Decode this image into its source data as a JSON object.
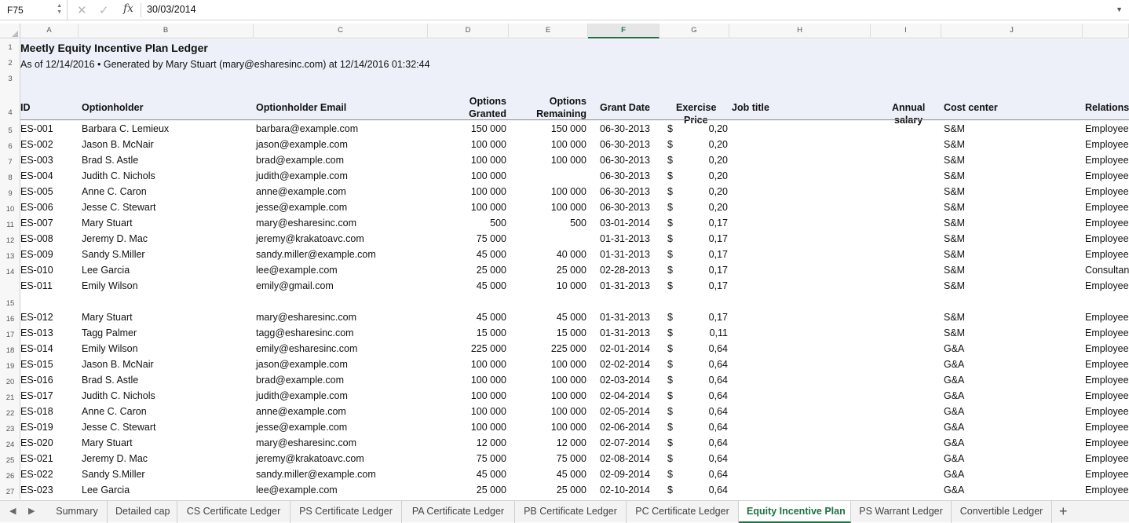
{
  "formula_bar": {
    "cell_ref": "F75",
    "fx": "fx",
    "value": "30/03/2014"
  },
  "columns": [
    "A",
    "B",
    "C",
    "D",
    "E",
    "F",
    "G",
    "H",
    "I",
    "J"
  ],
  "selected_column": "F",
  "sheet": {
    "title": "Meetly Equity Incentive Plan Ledger",
    "subtitle": "As of 12/14/2016 • Generated by Mary Stuart (mary@esharesinc.com) at 12/14/2016 01:32:44",
    "headers": {
      "id": "ID",
      "holder": "Optionholder",
      "email": "Optionholder Email",
      "granted_1": "Options",
      "granted_2": "Granted",
      "remaining_1": "Options",
      "remaining_2": "Remaining",
      "grant_date": "Grant Date",
      "price_1": "Exercise",
      "price_2": "Price",
      "job": "Job title",
      "salary_1": "Annual",
      "salary_2": "salary",
      "cost": "Cost center",
      "relation": "Relationship"
    },
    "rows": [
      {
        "n": "5",
        "id": "ES-001",
        "holder": "Barbara C. Lemieux",
        "email": "barbara@example.com",
        "granted": "150 000",
        "remaining": "150 000",
        "date": "06-30-2013",
        "cur": "$",
        "price": "0,20",
        "cost": "S&M",
        "rel": "Employee"
      },
      {
        "n": "6",
        "id": "ES-002",
        "holder": "Jason B. McNair",
        "email": "jason@example.com",
        "granted": "100 000",
        "remaining": "100 000",
        "date": "06-30-2013",
        "cur": "$",
        "price": "0,20",
        "cost": "S&M",
        "rel": "Employee"
      },
      {
        "n": "7",
        "id": "ES-003",
        "holder": "Brad S. Astle",
        "email": "brad@example.com",
        "granted": "100 000",
        "remaining": "100 000",
        "date": "06-30-2013",
        "cur": "$",
        "price": "0,20",
        "cost": "S&M",
        "rel": "Employee"
      },
      {
        "n": "8",
        "id": "ES-004",
        "holder": "Judith C. Nichols",
        "email": "judith@example.com",
        "granted": "100 000",
        "remaining": "",
        "date": "06-30-2013",
        "cur": "$",
        "price": "0,20",
        "cost": "S&M",
        "rel": "Employee"
      },
      {
        "n": "9",
        "id": "ES-005",
        "holder": "Anne C. Caron",
        "email": "anne@example.com",
        "granted": "100 000",
        "remaining": "100 000",
        "date": "06-30-2013",
        "cur": "$",
        "price": "0,20",
        "cost": "S&M",
        "rel": "Employee"
      },
      {
        "n": "10",
        "id": "ES-006",
        "holder": "Jesse C. Stewart",
        "email": "jesse@example.com",
        "granted": "100 000",
        "remaining": "100 000",
        "date": "06-30-2013",
        "cur": "$",
        "price": "0,20",
        "cost": "S&M",
        "rel": "Employee"
      },
      {
        "n": "11",
        "id": "ES-007",
        "holder": "Mary Stuart",
        "email": "mary@esharesinc.com",
        "granted": "500",
        "remaining": "500",
        "date": "03-01-2014",
        "cur": "$",
        "price": "0,17",
        "cost": "S&M",
        "rel": "Employee"
      },
      {
        "n": "12",
        "id": "ES-008",
        "holder": "Jeremy D. Mac",
        "email": "jeremy@krakatoavc.com",
        "granted": "75 000",
        "remaining": "",
        "date": "01-31-2013",
        "cur": "$",
        "price": "0,17",
        "cost": "S&M",
        "rel": "Employee"
      },
      {
        "n": "13",
        "id": "ES-009",
        "holder": "Sandy S.Miller",
        "email": "sandy.miller@example.com",
        "granted": "45 000",
        "remaining": "40 000",
        "date": "01-31-2013",
        "cur": "$",
        "price": "0,17",
        "cost": "S&M",
        "rel": "Employee"
      },
      {
        "n": "14",
        "id": "ES-010",
        "holder": "Lee Garcia",
        "email": "lee@example.com",
        "granted": "25 000",
        "remaining": "25 000",
        "date": "02-28-2013",
        "cur": "$",
        "price": "0,17",
        "cost": "S&M",
        "rel": "Consultant"
      },
      {
        "n": "15",
        "id": "ES-011",
        "holder": "Emily Wilson",
        "email": "emily@gmail.com",
        "granted": "45 000",
        "remaining": "10 000",
        "date": "01-31-2013",
        "cur": "$",
        "price": "0,17",
        "cost": "S&M",
        "rel": "Employee",
        "tall": true
      },
      {
        "n": "16",
        "id": "ES-012",
        "holder": "Mary Stuart",
        "email": "mary@esharesinc.com",
        "granted": "45 000",
        "remaining": "45 000",
        "date": "01-31-2013",
        "cur": "$",
        "price": "0,17",
        "cost": "S&M",
        "rel": "Employee"
      },
      {
        "n": "17",
        "id": "ES-013",
        "holder": "Tagg Palmer",
        "email": "tagg@esharesinc.com",
        "granted": "15 000",
        "remaining": "15 000",
        "date": "01-31-2013",
        "cur": "$",
        "price": "0,11",
        "cost": "S&M",
        "rel": "Employee"
      },
      {
        "n": "18",
        "id": "ES-014",
        "holder": "Emily Wilson",
        "email": "emily@esharesinc.com",
        "granted": "225 000",
        "remaining": "225 000",
        "date": "02-01-2014",
        "cur": "$",
        "price": "0,64",
        "cost": "G&A",
        "rel": "Employee"
      },
      {
        "n": "19",
        "id": "ES-015",
        "holder": "Jason B. McNair",
        "email": "jason@example.com",
        "granted": "100 000",
        "remaining": "100 000",
        "date": "02-02-2014",
        "cur": "$",
        "price": "0,64",
        "cost": "G&A",
        "rel": "Employee"
      },
      {
        "n": "20",
        "id": "ES-016",
        "holder": "Brad S. Astle",
        "email": "brad@example.com",
        "granted": "100 000",
        "remaining": "100 000",
        "date": "02-03-2014",
        "cur": "$",
        "price": "0,64",
        "cost": "G&A",
        "rel": "Employee"
      },
      {
        "n": "21",
        "id": "ES-017",
        "holder": "Judith C. Nichols",
        "email": "judith@example.com",
        "granted": "100 000",
        "remaining": "100 000",
        "date": "02-04-2014",
        "cur": "$",
        "price": "0,64",
        "cost": "G&A",
        "rel": "Employee"
      },
      {
        "n": "22",
        "id": "ES-018",
        "holder": "Anne C. Caron",
        "email": "anne@example.com",
        "granted": "100 000",
        "remaining": "100 000",
        "date": "02-05-2014",
        "cur": "$",
        "price": "0,64",
        "cost": "G&A",
        "rel": "Employee"
      },
      {
        "n": "23",
        "id": "ES-019",
        "holder": "Jesse C. Stewart",
        "email": "jesse@example.com",
        "granted": "100 000",
        "remaining": "100 000",
        "date": "02-06-2014",
        "cur": "$",
        "price": "0,64",
        "cost": "G&A",
        "rel": "Employee"
      },
      {
        "n": "24",
        "id": "ES-020",
        "holder": "Mary Stuart",
        "email": "mary@esharesinc.com",
        "granted": "12 000",
        "remaining": "12 000",
        "date": "02-07-2014",
        "cur": "$",
        "price": "0,64",
        "cost": "G&A",
        "rel": "Employee"
      },
      {
        "n": "25",
        "id": "ES-021",
        "holder": "Jeremy D. Mac",
        "email": "jeremy@krakatoavc.com",
        "granted": "75 000",
        "remaining": "75 000",
        "date": "02-08-2014",
        "cur": "$",
        "price": "0,64",
        "cost": "G&A",
        "rel": "Employee"
      },
      {
        "n": "26",
        "id": "ES-022",
        "holder": "Sandy S.Miller",
        "email": "sandy.miller@example.com",
        "granted": "45 000",
        "remaining": "45 000",
        "date": "02-09-2014",
        "cur": "$",
        "price": "0,64",
        "cost": "G&A",
        "rel": "Employee"
      },
      {
        "n": "27",
        "id": "ES-023",
        "holder": "Lee Garcia",
        "email": "lee@example.com",
        "granted": "25 000",
        "remaining": "25 000",
        "date": "02-10-2014",
        "cur": "$",
        "price": "0,64",
        "cost": "G&A",
        "rel": "Employee"
      }
    ]
  },
  "tabs": {
    "items": [
      "Summary",
      "Detailed cap",
      "CS Certificate Ledger",
      "PS Certificate Ledger",
      "PA Certificate Ledger",
      "PB Certificate Ledger",
      "PC Certificate Ledger",
      "Equity Incentive Plan",
      "PS Warrant Ledger",
      "Convertible Ledger"
    ],
    "active": "Equity Incentive Plan",
    "add": "+"
  },
  "colors": {
    "accent": "#1e7145",
    "band": "#eef0f9"
  }
}
